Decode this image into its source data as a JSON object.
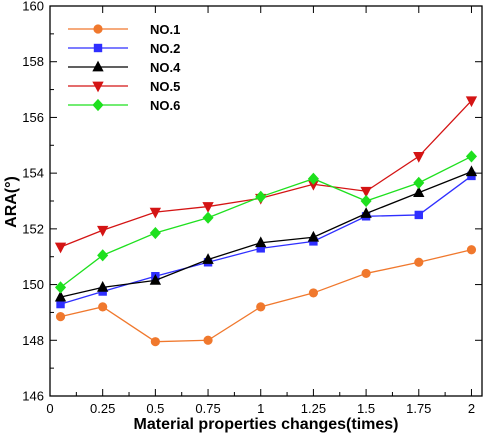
{
  "chart_data": {
    "type": "line",
    "title": "",
    "xlabel": "Material properties changes(times)",
    "ylabel": "ARA(°)",
    "x": [
      0.05,
      0.25,
      0.5,
      0.75,
      1,
      1.25,
      1.5,
      1.75,
      2
    ],
    "x_tick_labels": [
      "0",
      "0.25",
      "0.5",
      "0.75",
      "1",
      "1.25",
      "1.5",
      "1.75",
      "2"
    ],
    "x_tick_values": [
      0,
      0.25,
      0.5,
      0.75,
      1,
      1.25,
      1.5,
      1.75,
      2
    ],
    "xlim": [
      0,
      2.05
    ],
    "y_tick_labels": [
      "146",
      "148",
      "150",
      "152",
      "154",
      "156",
      "158",
      "160"
    ],
    "y_tick_values": [
      146,
      148,
      150,
      152,
      154,
      156,
      158,
      160
    ],
    "ylim": [
      146,
      160
    ],
    "grid": false,
    "legend_position": "top-left",
    "series": [
      {
        "name": "NO.1",
        "color": "#f0782d",
        "marker": "circle",
        "values": [
          148.85,
          149.2,
          147.95,
          148.0,
          149.2,
          149.7,
          150.4,
          150.8,
          151.25
        ]
      },
      {
        "name": "NO.2",
        "color": "#2f2fff",
        "marker": "square",
        "values": [
          149.3,
          149.75,
          150.3,
          150.8,
          151.3,
          151.55,
          152.45,
          152.5,
          153.9
        ]
      },
      {
        "name": "NO.4",
        "color": "#000000",
        "marker": "triangle-up",
        "values": [
          149.55,
          149.9,
          150.15,
          150.9,
          151.5,
          151.7,
          152.55,
          153.3,
          154.05
        ]
      },
      {
        "name": "NO.5",
        "color": "#d41414",
        "marker": "triangle-down",
        "values": [
          151.35,
          151.95,
          152.6,
          152.8,
          153.1,
          153.6,
          153.35,
          154.6,
          156.6
        ]
      },
      {
        "name": "NO.6",
        "color": "#1ee01e",
        "marker": "diamond",
        "values": [
          149.9,
          151.05,
          151.85,
          152.4,
          153.15,
          153.8,
          153.0,
          153.65,
          154.6
        ]
      }
    ]
  }
}
